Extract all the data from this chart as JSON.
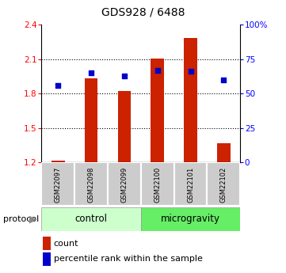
{
  "title": "GDS928 / 6488",
  "samples": [
    "GSM22097",
    "GSM22098",
    "GSM22099",
    "GSM22100",
    "GSM22101",
    "GSM22102"
  ],
  "red_counts": [
    1.215,
    1.935,
    1.82,
    2.105,
    2.28,
    1.37
  ],
  "blue_percentiles": [
    56,
    65,
    63,
    67,
    66,
    60
  ],
  "ylim_left": [
    1.2,
    2.4
  ],
  "yticks_left": [
    1.2,
    1.5,
    1.8,
    2.1,
    2.4
  ],
  "ylim_right": [
    0,
    100
  ],
  "yticks_right": [
    0,
    25,
    50,
    75,
    100
  ],
  "ytick_labels_right": [
    "0",
    "25",
    "50",
    "75",
    "100%"
  ],
  "grid_values": [
    1.5,
    1.8,
    2.1
  ],
  "bar_color": "#cc2200",
  "square_color": "#0000cc",
  "control_color": "#ccffcc",
  "microgravity_color": "#66ee66",
  "label_bg_color": "#cccccc",
  "legend_items": [
    "count",
    "percentile rank within the sample"
  ],
  "protocol_label": "protocol",
  "ybase": 1.2,
  "bar_width": 0.4
}
